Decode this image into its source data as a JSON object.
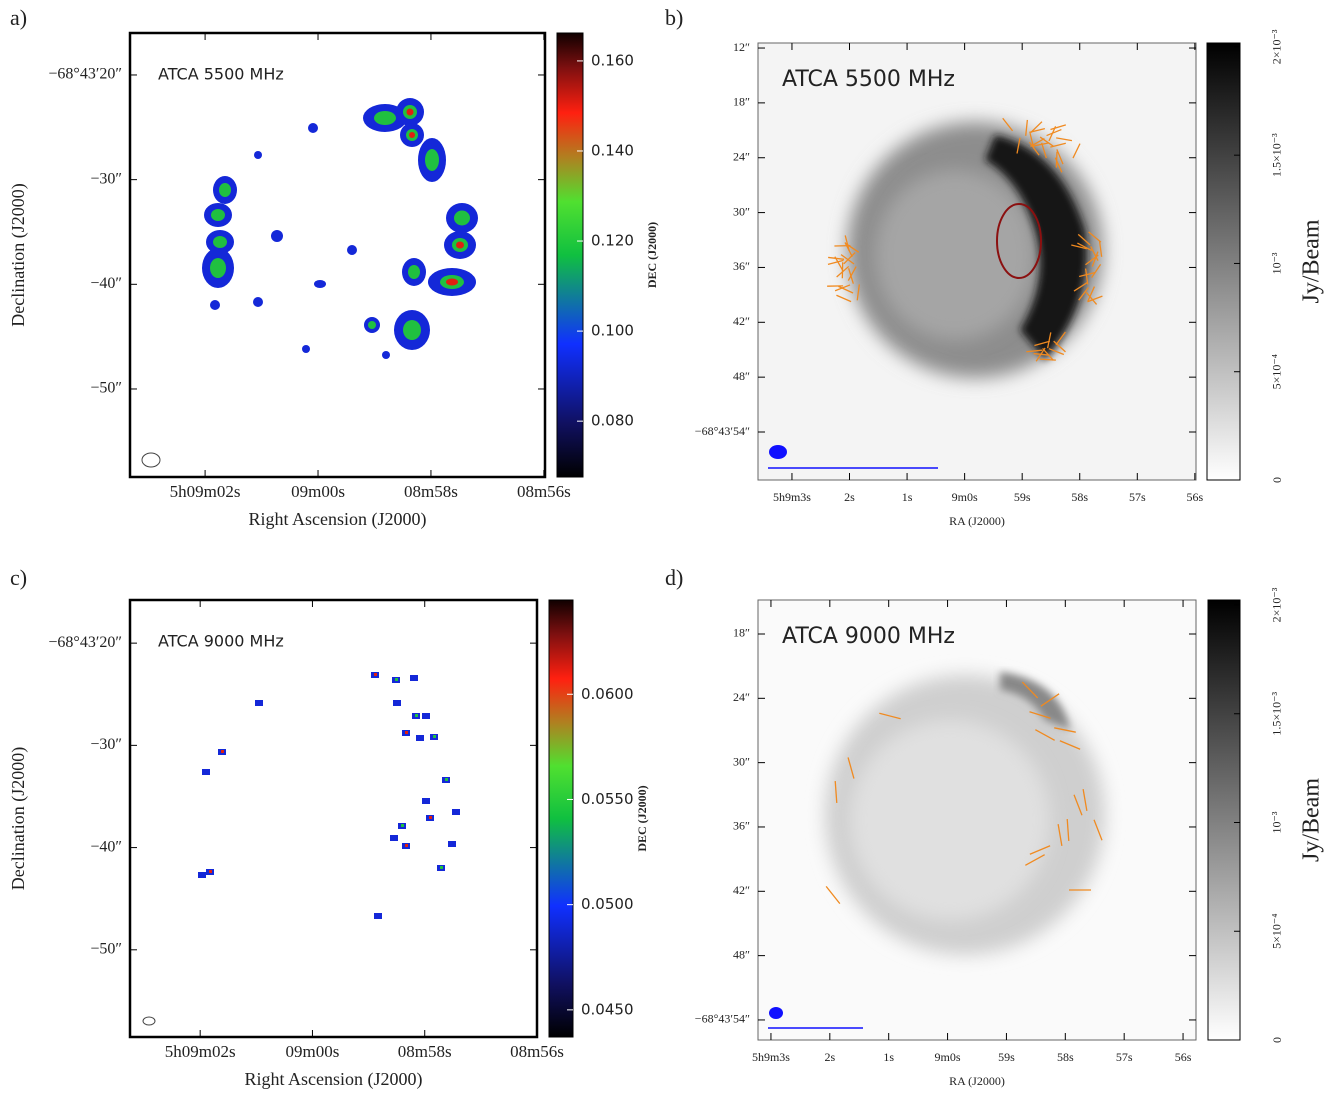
{
  "panels": [
    {
      "label": "a)",
      "title": "ATCA 5500 MHz",
      "xlabel": "Right Ascension (J2000)",
      "ylabel": "Declination (J2000)",
      "colorbar_label": "DEC (J2000)",
      "colormap": "jet",
      "xlim": [
        63.33,
        55.98
      ],
      "ylim": [
        15.99,
        58.41
      ],
      "xticks": [
        {
          "value": 62,
          "label": "5h09m02s"
        },
        {
          "value": 60,
          "label": "09m00s"
        },
        {
          "value": 58,
          "label": "08m58s"
        },
        {
          "value": 56,
          "label": "08m56s"
        }
      ],
      "yticks": [
        {
          "value": 20,
          "label": "−68°43′20″"
        },
        {
          "value": 30,
          "label": "−30″"
        },
        {
          "value": 40,
          "label": "−40″"
        },
        {
          "value": 50,
          "label": "−50″"
        }
      ],
      "clim": [
        0.0676,
        0.1662
      ],
      "cticks": [
        {
          "value": 0.16,
          "label": "0.160"
        },
        {
          "value": 0.14,
          "label": "0.140"
        },
        {
          "value": 0.12,
          "label": "0.120"
        },
        {
          "value": 0.1,
          "label": "0.100"
        },
        {
          "value": 0.08,
          "label": "0.080"
        }
      ]
    },
    {
      "label": "b)",
      "title": "ATCA 5500 MHz",
      "xlabel": "RA (J2000)",
      "colorbar_label": "Jy/Beam",
      "colormap": "gray",
      "xlim": [
        63.59,
        55.98
      ],
      "ylim": [
        11.45,
        59.25
      ],
      "xticks": [
        {
          "value": 63,
          "label": "5h9m3s"
        },
        {
          "value": 62,
          "label": "2s"
        },
        {
          "value": 61,
          "label": "1s"
        },
        {
          "value": 60,
          "label": "9m0s"
        },
        {
          "value": 59,
          "label": "59s"
        },
        {
          "value": 58,
          "label": "58s"
        },
        {
          "value": 57,
          "label": "57s"
        },
        {
          "value": 56,
          "label": "56s"
        }
      ],
      "yticks": [
        {
          "value": 12,
          "label": "12″"
        },
        {
          "value": 18,
          "label": "18″"
        },
        {
          "value": 24,
          "label": "24″"
        },
        {
          "value": 30,
          "label": "30″"
        },
        {
          "value": 36,
          "label": "36″"
        },
        {
          "value": 42,
          "label": "42″"
        },
        {
          "value": 48,
          "label": "48″"
        },
        {
          "value": 54,
          "label": "−68°43′54″"
        }
      ],
      "clim": [
        0,
        0.002018
      ],
      "cticks": [
        {
          "value": 0.002,
          "label": "2×10⁻³"
        },
        {
          "value": 0.0015,
          "label": "1.5×10⁻³"
        },
        {
          "value": 0.001,
          "label": "10⁻³"
        },
        {
          "value": 0.0005,
          "label": "5×10⁻⁴"
        },
        0
      ]
    },
    {
      "label": "c)",
      "title": "ATCA 9000 MHz",
      "xlabel": "Right Ascension (J2000)",
      "ylabel": "Declination (J2000)",
      "colorbar_label": "DEC (J2000)",
      "colormap": "jet",
      "xlim": [
        63.25,
        56.0
      ],
      "ylim": [
        15.78,
        58.53
      ],
      "xticks": [
        {
          "value": 62,
          "label": "5h09m02s"
        },
        {
          "value": 60,
          "label": "09m00s"
        },
        {
          "value": 58,
          "label": "08m58s"
        },
        {
          "value": 56,
          "label": "08m56s"
        }
      ],
      "yticks": [
        {
          "value": 20,
          "label": "−68°43′20″"
        },
        {
          "value": 30,
          "label": "−30″"
        },
        {
          "value": 40,
          "label": "−40″"
        },
        {
          "value": 50,
          "label": "−50″"
        }
      ],
      "clim": [
        0.04371,
        0.06448
      ],
      "cticks": [
        {
          "value": 0.06,
          "label": "0.0600"
        },
        {
          "value": 0.055,
          "label": "0.0550"
        },
        {
          "value": 0.05,
          "label": "0.0500"
        },
        {
          "value": 0.045,
          "label": "0.0450"
        }
      ]
    },
    {
      "label": "d)",
      "title": "ATCA 9000 MHz",
      "xlabel": "RA (J2000)",
      "colorbar_label": "Jy/Beam",
      "colormap": "gray",
      "xlim": [
        63.22,
        55.78
      ],
      "ylim": [
        14.83,
        55.87
      ],
      "xticks": [
        {
          "value": 63,
          "label": "5h9m3s"
        },
        {
          "value": 62,
          "label": "2s"
        },
        {
          "value": 61,
          "label": "1s"
        },
        {
          "value": 60,
          "label": "9m0s"
        },
        {
          "value": 59,
          "label": "59s"
        },
        {
          "value": 58,
          "label": "58s"
        },
        {
          "value": 57,
          "label": "57s"
        },
        {
          "value": 56,
          "label": "56s"
        }
      ],
      "yticks": [
        {
          "value": 18,
          "label": "18″"
        },
        {
          "value": 24,
          "label": "24″"
        },
        {
          "value": 30,
          "label": "30″"
        },
        {
          "value": 36,
          "label": "36″"
        },
        {
          "value": 42,
          "label": "42″"
        },
        {
          "value": 48,
          "label": "48″"
        },
        {
          "value": 54,
          "label": "−68°43′54″"
        }
      ],
      "clim": [
        0,
        0.002023
      ],
      "cticks": [
        {
          "value": 0.002,
          "label": "2×10⁻³"
        },
        {
          "value": 0.0015,
          "label": "1.5×10⁻³"
        },
        {
          "value": 0.001,
          "label": "10⁻³"
        },
        {
          "value": 0.0005,
          "label": "5×10⁻⁴"
        },
        0
      ]
    }
  ]
}
